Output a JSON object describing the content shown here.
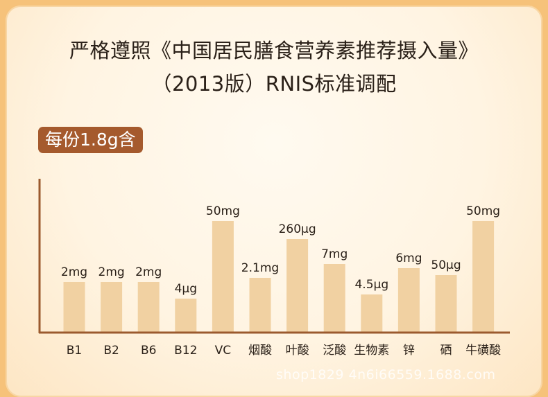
{
  "header": {
    "title_line1": "严格遵照《中国居民膳食营养素推荐摄入量》",
    "title_line2": "（2013版）RNIS标准调配",
    "badge": "每份1.8g含"
  },
  "watermark": "shop1829 4n6i66559.1688.com",
  "colors": {
    "bar": "#f1d1a2",
    "axis": "#9b5a2e",
    "badge": "#a55a2d",
    "text": "#2a2018"
  },
  "chart_data": {
    "type": "bar",
    "categories": [
      "B1",
      "B2",
      "B6",
      "B12",
      "VC",
      "烟酸",
      "叶酸",
      "泛酸",
      "生物素",
      "锌",
      "硒",
      "牛磺酸"
    ],
    "labels": [
      "2mg",
      "2mg",
      "2mg",
      "4μg",
      "50mg",
      "2.1mg",
      "260μg",
      "7mg",
      "4.5μg",
      "6mg",
      "50μg",
      "50mg"
    ],
    "values": [
      2,
      2,
      2,
      4,
      50,
      2.1,
      260,
      7,
      4.5,
      6,
      50,
      50
    ],
    "units": [
      "mg",
      "mg",
      "mg",
      "μg",
      "mg",
      "mg",
      "μg",
      "mg",
      "μg",
      "mg",
      "μg",
      "mg"
    ],
    "display_heights": [
      72,
      72,
      72,
      48,
      160,
      78,
      134,
      98,
      54,
      92,
      82,
      160
    ],
    "title": "",
    "xlabel": "",
    "ylabel": "",
    "grid": false
  }
}
